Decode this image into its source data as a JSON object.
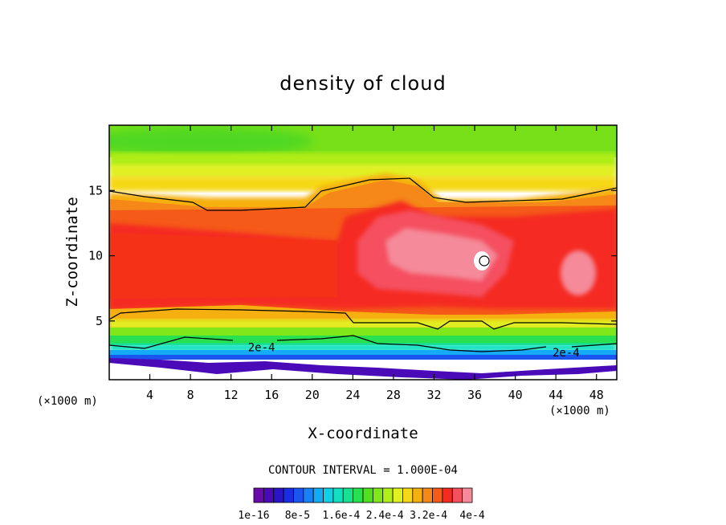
{
  "chart_data": {
    "type": "heatmap",
    "title": "density of cloud",
    "xlabel": "X-coordinate",
    "ylabel": "Z-coordinate",
    "x_unit": "(×1000 m)",
    "y_unit": "(×1000 m)",
    "xlim": [
      0,
      50
    ],
    "ylim": [
      0.5,
      20
    ],
    "x_ticks": [
      4,
      8,
      12,
      16,
      20,
      24,
      28,
      32,
      36,
      40,
      44,
      48
    ],
    "y_ticks": [
      5,
      10,
      15
    ],
    "contour_interval_text": "CONTOUR INTERVAL = 1.000E-04",
    "contour_labels": [
      {
        "text": "2e-4",
        "x": 15,
        "z": 3.0
      },
      {
        "text": "2e-4",
        "x": 45,
        "z": 2.6
      }
    ],
    "colorbar": {
      "levels": 22,
      "tick_labels": [
        "1e-16",
        "8e-5",
        "1.6e-4",
        "2.4e-4",
        "3.2e-4",
        "4e-4"
      ],
      "colors": [
        "#6a0aa8",
        "#4a0ab8",
        "#2a14c8",
        "#1a2ee0",
        "#1a55f0",
        "#1a80f5",
        "#14aaf5",
        "#10d0e8",
        "#10e0c0",
        "#18e090",
        "#28e050",
        "#50e020",
        "#80e818",
        "#b0f018",
        "#e0f020",
        "#f5d818",
        "#f5b010",
        "#f58818",
        "#f55a18",
        "#f52a20",
        "#f55060",
        "#f58a9a"
      ]
    },
    "grid": false,
    "legend": "none"
  }
}
